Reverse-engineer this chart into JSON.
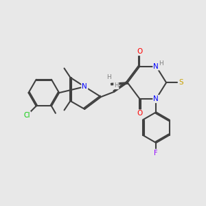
{
  "background_color": "#e8e8e8",
  "title": "",
  "atoms": {
    "colors": {
      "C": "#404040",
      "N": "#0000ff",
      "O": "#ff0000",
      "S": "#c8a000",
      "Cl": "#00cc00",
      "F": "#9000ff",
      "H": "#808080"
    }
  }
}
